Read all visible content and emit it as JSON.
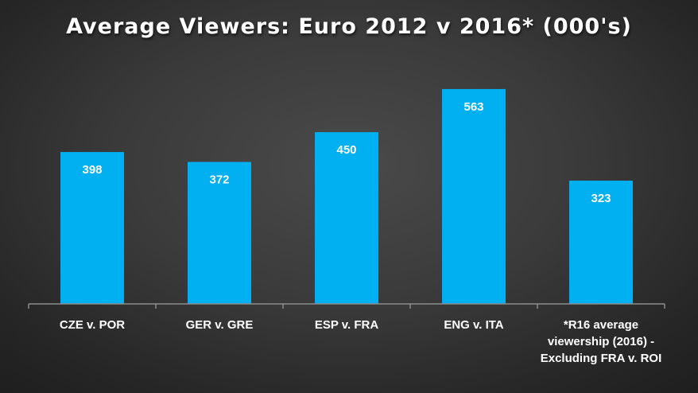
{
  "chart_data": {
    "type": "bar",
    "title": "Average Viewers: Euro 2012 v 2016* (000's)",
    "categories": [
      [
        "CZE v. POR"
      ],
      [
        "GER v. GRE"
      ],
      [
        "ESP v. FRA"
      ],
      [
        "ENG v. ITA"
      ],
      [
        "*R16 average",
        "viewership (2016) -",
        "Excluding FRA v. ROI"
      ]
    ],
    "values": [
      398,
      372,
      450,
      563,
      323
    ],
    "data_labels": [
      "398",
      "372",
      "450",
      "563",
      "323"
    ],
    "xlabel": "",
    "ylabel": "",
    "ylim": [
      0,
      600
    ],
    "grid": false,
    "legend": "none",
    "colors": {
      "bar": "#00B0F0",
      "axis": "#8c8c8c",
      "text": "#ffffff"
    }
  }
}
